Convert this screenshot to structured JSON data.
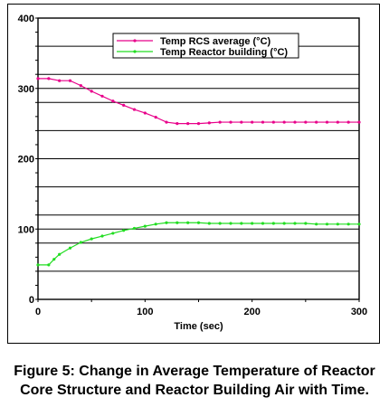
{
  "chart_data": {
    "type": "line",
    "title": "",
    "xlabel": "Time (sec)",
    "ylabel": "",
    "xlim": [
      0,
      300
    ],
    "ylim": [
      0,
      400
    ],
    "x_ticks": [
      0,
      100,
      200,
      300
    ],
    "y_ticks": [
      0,
      100,
      200,
      300,
      400
    ],
    "x_tick_labels": [
      "0",
      "100",
      "200",
      "300"
    ],
    "y_tick_labels": [
      "0",
      "100",
      "200",
      "300",
      "400"
    ],
    "gridlines_y": [
      40,
      80,
      120,
      160,
      240,
      280,
      320,
      360
    ],
    "grid": "horizontal",
    "legend_position": "top-right",
    "series": [
      {
        "name": "Temp RCS average (°C)",
        "color": "#e8008a",
        "x": [
          0,
          10,
          20,
          30,
          40,
          50,
          60,
          70,
          80,
          90,
          100,
          110,
          120,
          130,
          140,
          150,
          160,
          170,
          180,
          190,
          200,
          210,
          220,
          230,
          240,
          250,
          260,
          270,
          280,
          290,
          300
        ],
        "y": [
          314,
          314,
          311,
          311,
          304,
          296,
          289,
          282,
          276,
          270,
          265,
          259,
          252,
          250,
          250,
          250,
          251,
          252,
          252,
          252,
          252,
          252,
          252,
          252,
          252,
          252,
          252,
          252,
          252,
          252,
          252
        ]
      },
      {
        "name": "Temp Reactor building (°C)",
        "color": "#22dd22",
        "x": [
          0,
          10,
          15,
          20,
          30,
          40,
          50,
          60,
          70,
          80,
          90,
          100,
          110,
          120,
          130,
          140,
          150,
          160,
          170,
          180,
          190,
          200,
          210,
          220,
          230,
          240,
          250,
          260,
          270,
          280,
          290,
          300
        ],
        "y": [
          49,
          49,
          57,
          64,
          73,
          81,
          86,
          90,
          94,
          98,
          101,
          104,
          107,
          109,
          109,
          109,
          109,
          108,
          108,
          108,
          108,
          108,
          108,
          108,
          108,
          108,
          108,
          107,
          107,
          107,
          107,
          107
        ]
      }
    ]
  },
  "caption": {
    "line1": "Figure 5: Change in Average Temperature of Reactor",
    "line2": "Core Structure and Reactor Building Air with Time."
  }
}
